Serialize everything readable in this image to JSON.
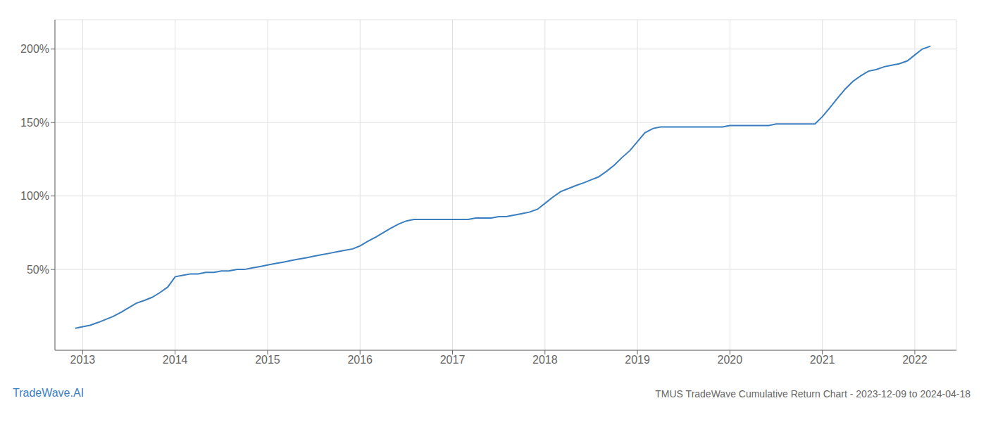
{
  "chart_data": {
    "type": "line",
    "title": "TMUS TradeWave Cumulative Return Chart - 2023-12-09 to 2024-04-18",
    "annotations": [
      "TradeWave.AI"
    ],
    "color": "#3a7ebf",
    "grid": true,
    "x": [
      2012.92,
      2013.0,
      2013.08,
      2013.17,
      2013.25,
      2013.33,
      2013.42,
      2013.5,
      2013.58,
      2013.67,
      2013.75,
      2013.83,
      2013.92,
      2014.0,
      2014.08,
      2014.17,
      2014.25,
      2014.33,
      2014.42,
      2014.5,
      2014.58,
      2014.67,
      2014.75,
      2014.83,
      2014.92,
      2015.0,
      2015.08,
      2015.17,
      2015.25,
      2015.33,
      2015.42,
      2015.5,
      2015.58,
      2015.67,
      2015.75,
      2015.83,
      2015.92,
      2016.0,
      2016.08,
      2016.17,
      2016.25,
      2016.33,
      2016.42,
      2016.5,
      2016.58,
      2016.67,
      2016.75,
      2016.83,
      2016.92,
      2017.0,
      2017.08,
      2017.17,
      2017.25,
      2017.33,
      2017.42,
      2017.5,
      2017.58,
      2017.67,
      2017.75,
      2017.83,
      2017.92,
      2018.0,
      2018.08,
      2018.17,
      2018.25,
      2018.33,
      2018.42,
      2018.5,
      2018.58,
      2018.67,
      2018.75,
      2018.83,
      2018.92,
      2019.0,
      2019.08,
      2019.17,
      2019.25,
      2019.33,
      2019.42,
      2019.5,
      2019.58,
      2019.67,
      2019.75,
      2019.83,
      2019.92,
      2020.0,
      2020.08,
      2020.17,
      2020.25,
      2020.33,
      2020.42,
      2020.5,
      2020.58,
      2020.67,
      2020.75,
      2020.83,
      2020.92,
      2021.0,
      2021.08,
      2021.17,
      2021.25,
      2021.33,
      2021.42,
      2021.5,
      2021.58,
      2021.67,
      2021.75,
      2021.83,
      2021.92,
      2022.0,
      2022.08,
      2022.17
    ],
    "values": [
      10,
      11,
      12,
      14,
      16,
      18,
      21,
      24,
      27,
      29,
      31,
      34,
      38,
      45,
      46,
      47,
      47,
      48,
      48,
      49,
      49,
      50,
      50,
      51,
      52,
      53,
      54,
      55,
      56,
      57,
      58,
      59,
      60,
      61,
      62,
      63,
      64,
      66,
      69,
      72,
      75,
      78,
      81,
      83,
      84,
      84,
      84,
      84,
      84,
      84,
      84,
      84,
      85,
      85,
      85,
      86,
      86,
      87,
      88,
      89,
      91,
      95,
      99,
      103,
      105,
      107,
      109,
      111,
      113,
      117,
      121,
      126,
      131,
      137,
      143,
      146,
      147,
      147,
      147,
      147,
      147,
      147,
      147,
      147,
      147,
      148,
      148,
      148,
      148,
      148,
      148,
      149,
      149,
      149,
      149,
      149,
      149,
      154,
      160,
      167,
      173,
      178,
      182,
      185,
      186,
      188,
      189,
      190,
      192,
      196,
      200,
      202
    ],
    "xlim": [
      2012.7,
      2022.45
    ],
    "xticks": [
      2013,
      2014,
      2015,
      2016,
      2017,
      2018,
      2019,
      2020,
      2021,
      2022
    ],
    "ylim": [
      -5,
      220
    ],
    "yticks": [
      {
        "value": 50,
        "label": "50%"
      },
      {
        "value": 100,
        "label": "100%"
      },
      {
        "value": 150,
        "label": "150%"
      },
      {
        "value": 200,
        "label": "200%"
      }
    ]
  }
}
